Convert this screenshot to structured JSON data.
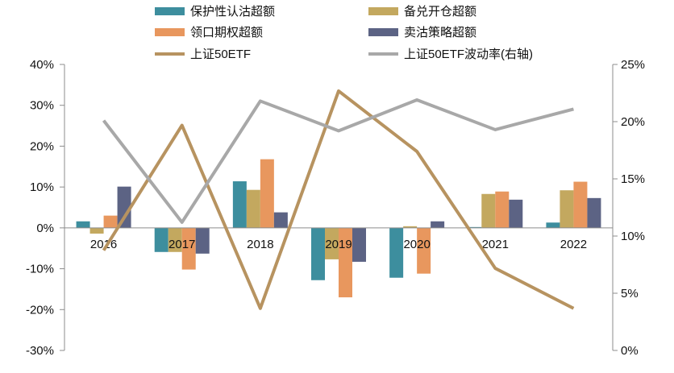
{
  "chart_data": {
    "type": "bar",
    "categories": [
      "2016",
      "2017",
      "2018",
      "2019",
      "2020",
      "2021",
      "2022"
    ],
    "series": [
      {
        "name": "保护性认沽超额",
        "type": "bar",
        "axis": "left",
        "color": "#3D8E9E",
        "values": [
          1.6,
          -5.9,
          11.4,
          -12.8,
          -12.2,
          0.2,
          1.3
        ]
      },
      {
        "name": "备兑开仓超额",
        "type": "bar",
        "axis": "left",
        "color": "#C3A85F",
        "values": [
          -1.4,
          -5.9,
          9.3,
          -7.7,
          0.4,
          8.3,
          9.2
        ]
      },
      {
        "name": "领口期权超额",
        "type": "bar",
        "axis": "left",
        "color": "#E8975E",
        "values": [
          3.0,
          -10.2,
          16.8,
          -17.0,
          -11.2,
          8.9,
          11.3
        ]
      },
      {
        "name": "卖沽策略超额",
        "type": "bar",
        "axis": "left",
        "color": "#5C6384",
        "values": [
          10.1,
          -6.3,
          3.8,
          -8.3,
          1.6,
          6.9,
          7.3
        ]
      },
      {
        "name": "上证50ETF",
        "type": "line",
        "axis": "left",
        "color": "#B79360",
        "values": [
          -5.5,
          25.1,
          -19.7,
          33.5,
          18.7,
          -9.9,
          -19.7
        ]
      },
      {
        "name": "上证50ETF波动率(右轴)",
        "type": "line",
        "axis": "right",
        "color": "#A8A8A8",
        "values": [
          20.1,
          11.2,
          21.8,
          19.2,
          21.9,
          19.3,
          21.1
        ]
      }
    ],
    "y_left": {
      "min": -30,
      "max": 40,
      "unit": "%",
      "tick_labels": [
        "40%",
        "30%",
        "20%",
        "10%",
        "0%",
        "-10%",
        "-20%",
        "-30%"
      ]
    },
    "y_right": {
      "min": 0,
      "max": 25,
      "unit": "%",
      "tick_labels": [
        "25%",
        "20%",
        "15%",
        "10%",
        "5%",
        "0%"
      ]
    },
    "legend_position": "top",
    "grid": false,
    "axis_color": "#8C8C8C"
  }
}
